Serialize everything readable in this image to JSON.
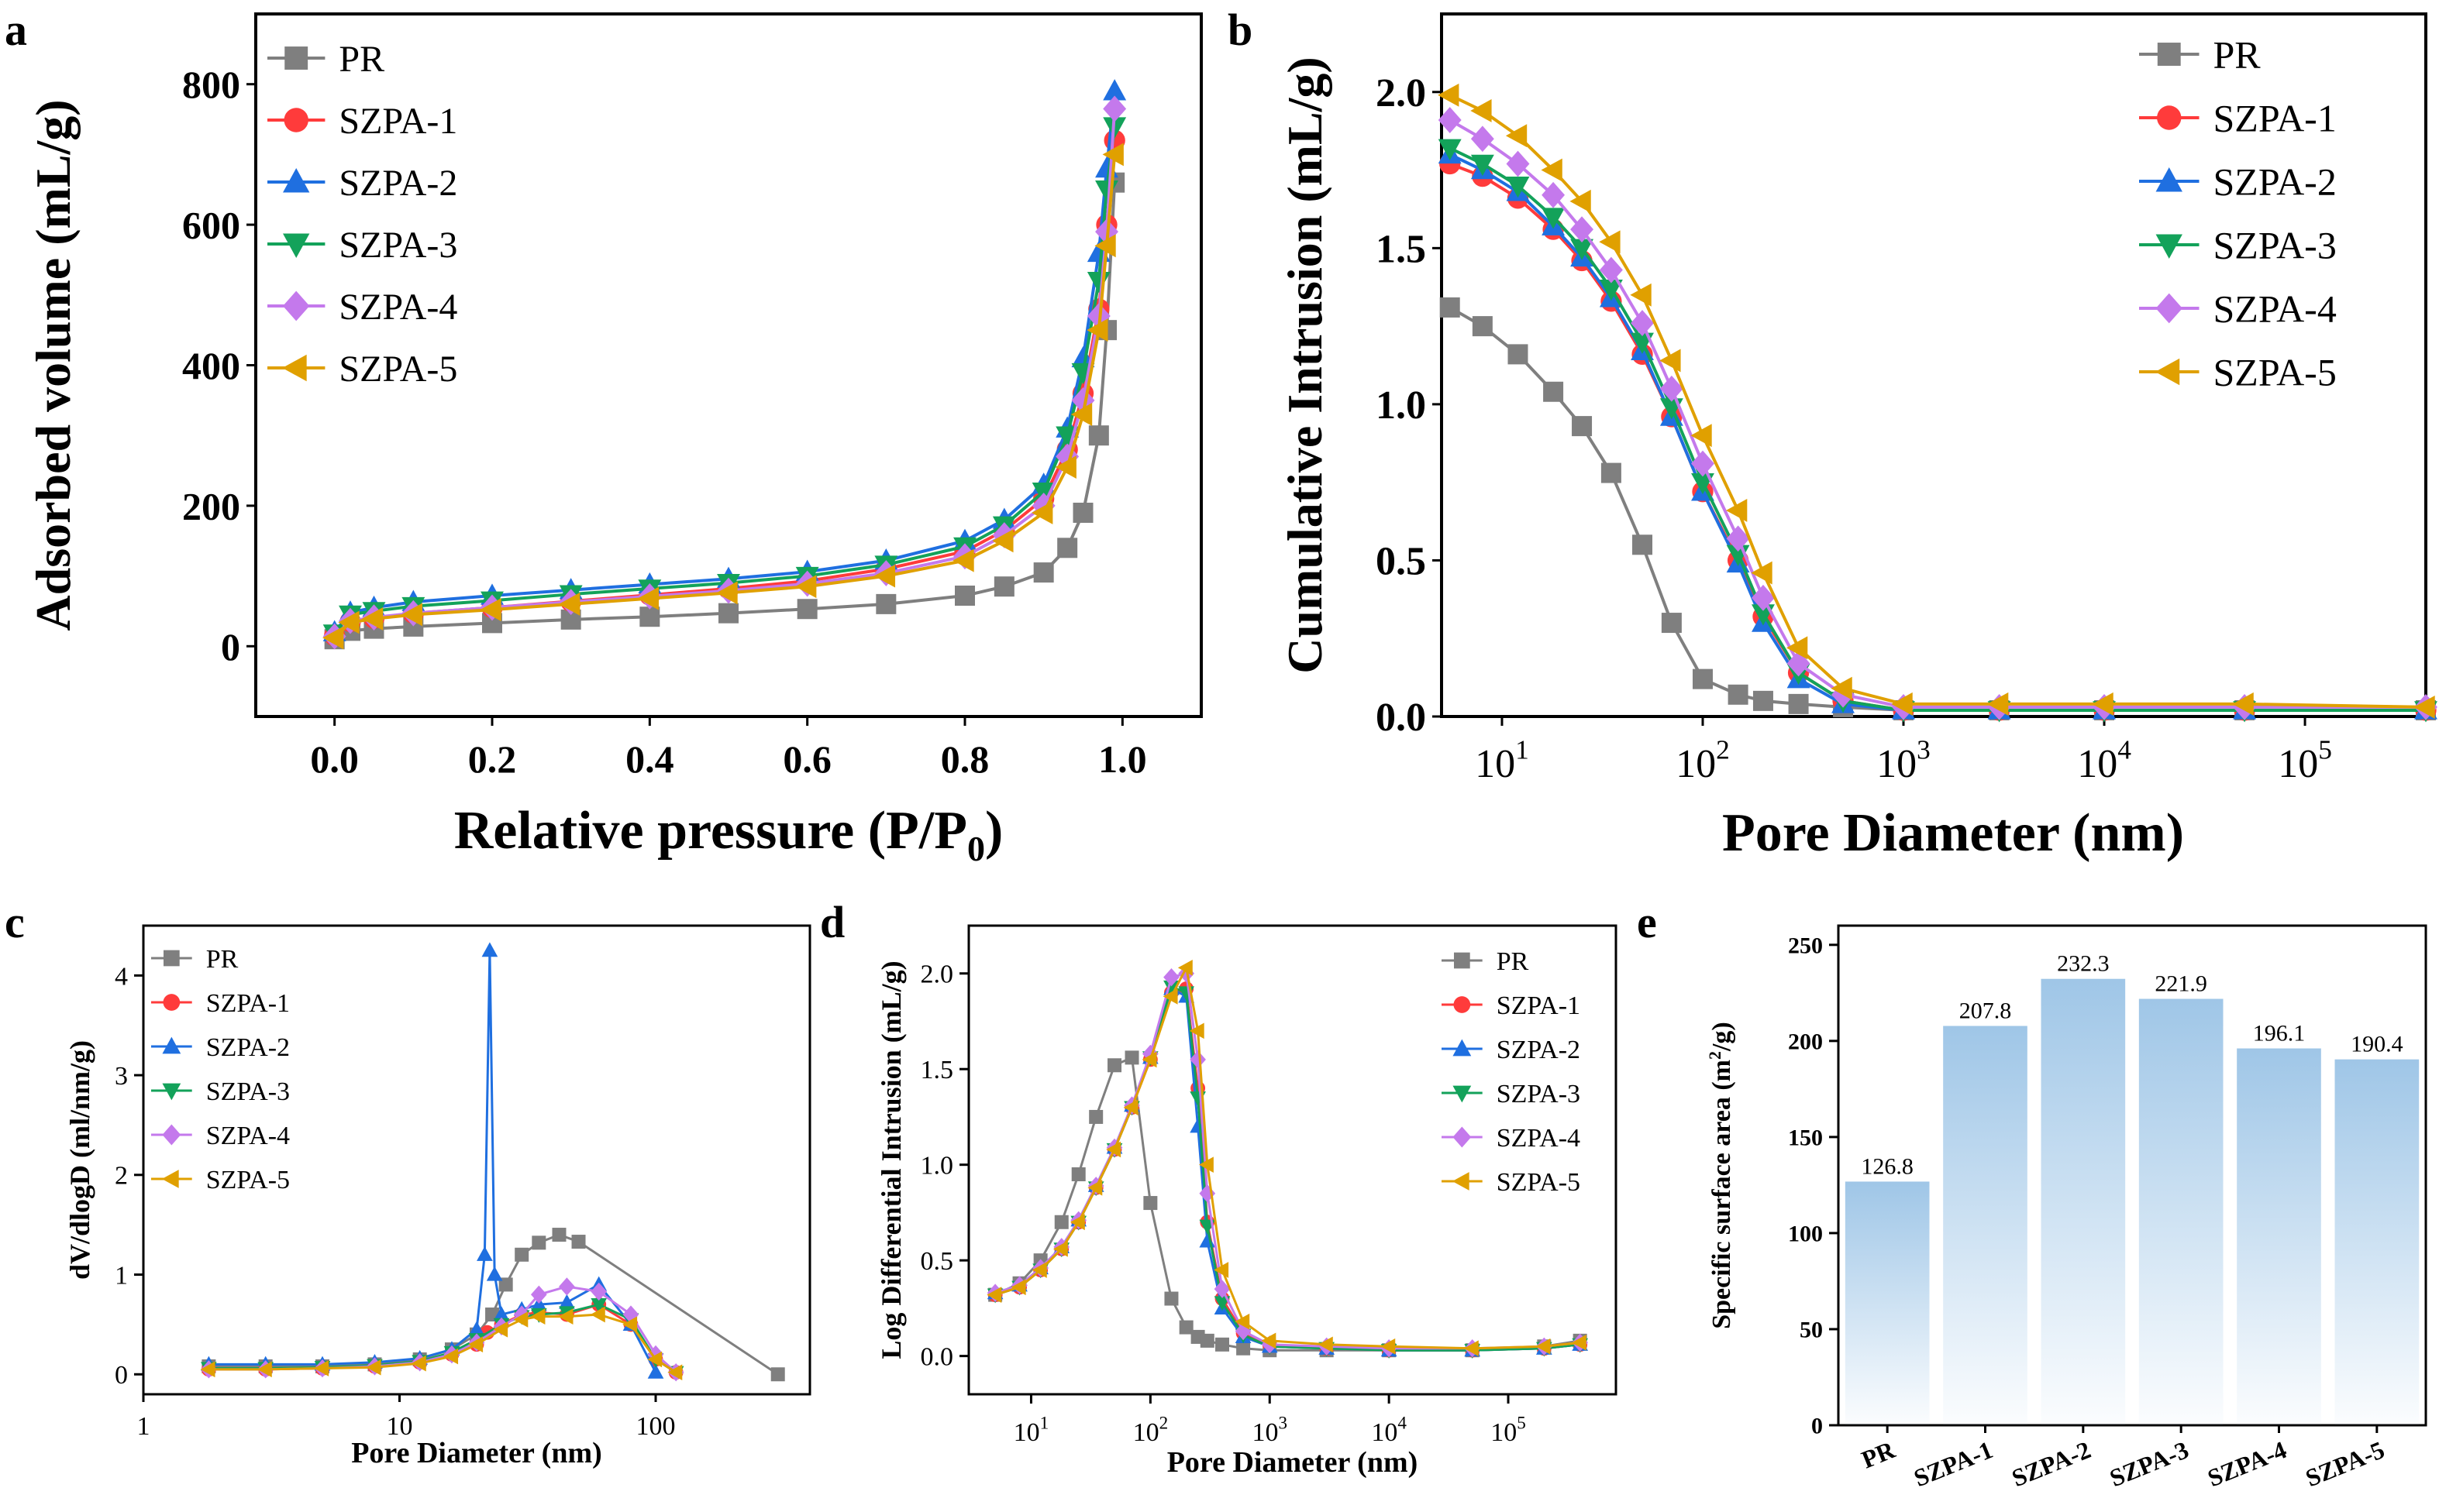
{
  "figure": {
    "series_names": [
      "PR",
      "SZPA-1",
      "SZPA-2",
      "SZPA-3",
      "SZPA-4",
      "SZPA-5"
    ],
    "colors": {
      "PR": "#7f7f7f",
      "SZPA-1": "#ff3b3b",
      "SZPA-2": "#1f6fe0",
      "SZPA-3": "#13a25a",
      "SZPA-4": "#c479ec",
      "SZPA-5": "#e0a000",
      "bar": "#9fc6e7"
    },
    "markers": {
      "PR": "square",
      "SZPA-1": "circle",
      "SZPA-2": "triangle-up",
      "SZPA-3": "triangle-down",
      "SZPA-4": "diamond",
      "SZPA-5": "triangle-left"
    }
  },
  "chart_data": [
    {
      "panel": "a",
      "type": "line",
      "title": "",
      "xlabel": "Relative pressure (P/P",
      "xlabel_sub": "0",
      "xlabel_end": ")",
      "ylabel": "Adsorbed volume (mL/g)",
      "xlim": [
        -0.1,
        1.1
      ],
      "ylim": [
        -100,
        900
      ],
      "xticks": [
        0.0,
        0.2,
        0.4,
        0.6,
        0.8,
        1.0
      ],
      "xtick_labels": [
        "0.0",
        "0.2",
        "0.4",
        "0.6",
        "0.8",
        "1.0"
      ],
      "yticks": [
        0,
        200,
        400,
        600,
        800
      ],
      "ytick_labels": [
        "0",
        "200",
        "400",
        "600",
        "800"
      ],
      "legend": "top-left",
      "x": [
        0.0,
        0.02,
        0.05,
        0.1,
        0.2,
        0.3,
        0.4,
        0.5,
        0.6,
        0.7,
        0.8,
        0.85,
        0.9,
        0.93,
        0.95,
        0.97,
        0.98,
        0.99
      ],
      "series": [
        {
          "name": "PR",
          "values": [
            10,
            22,
            25,
            28,
            33,
            38,
            42,
            47,
            53,
            60,
            72,
            85,
            105,
            140,
            190,
            300,
            450,
            660
          ]
        },
        {
          "name": "SZPA-1",
          "values": [
            15,
            35,
            40,
            47,
            55,
            64,
            73,
            82,
            93,
            110,
            135,
            165,
            210,
            280,
            360,
            480,
            600,
            720
          ]
        },
        {
          "name": "SZPA-2",
          "values": [
            20,
            48,
            55,
            63,
            72,
            80,
            88,
            96,
            106,
            122,
            150,
            180,
            230,
            310,
            410,
            560,
            680,
            790
          ]
        },
        {
          "name": "SZPA-3",
          "values": [
            18,
            45,
            50,
            57,
            65,
            74,
            82,
            90,
            100,
            116,
            142,
            172,
            220,
            300,
            390,
            520,
            650,
            740
          ]
        },
        {
          "name": "SZPA-4",
          "values": [
            14,
            36,
            41,
            47,
            55,
            63,
            71,
            79,
            89,
            104,
            128,
            158,
            200,
            270,
            350,
            470,
            590,
            765
          ]
        },
        {
          "name": "SZPA-5",
          "values": [
            12,
            34,
            39,
            45,
            52,
            60,
            68,
            76,
            85,
            100,
            122,
            150,
            190,
            255,
            330,
            450,
            570,
            700
          ]
        }
      ]
    },
    {
      "panel": "b",
      "type": "line",
      "title": "",
      "xscale": "log",
      "xlabel": "Pore Diameter (nm)",
      "ylabel": "Cumulative Intrusion (mL/g)",
      "xlim": [
        5,
        400000
      ],
      "ylim": [
        0,
        2.25
      ],
      "xticks": [
        10,
        100,
        1000,
        10000,
        100000
      ],
      "xtick_base": "10",
      "xtick_exps": [
        "1",
        "2",
        "3",
        "4",
        "5"
      ],
      "yticks": [
        0,
        0.5,
        1.0,
        1.5,
        2.0
      ],
      "ytick_labels": [
        "0.0",
        "0.5",
        "1.0",
        "1.5",
        "2.0"
      ],
      "legend": "top-right",
      "x": [
        5.5,
        8,
        12,
        18,
        25,
        35,
        50,
        70,
        100,
        150,
        200,
        300,
        500,
        1000,
        3000,
        10000,
        50000,
        400000
      ],
      "series": [
        {
          "name": "PR",
          "values": [
            1.31,
            1.25,
            1.16,
            1.04,
            0.93,
            0.78,
            0.55,
            0.3,
            0.12,
            0.07,
            0.05,
            0.04,
            0.03,
            0.02,
            0.02,
            0.02,
            0.02,
            0.02
          ]
        },
        {
          "name": "SZPA-1",
          "values": [
            1.77,
            1.73,
            1.66,
            1.56,
            1.46,
            1.33,
            1.16,
            0.96,
            0.72,
            0.5,
            0.32,
            0.14,
            0.05,
            0.02,
            0.02,
            0.02,
            0.02,
            0.02
          ]
        },
        {
          "name": "SZPA-2",
          "values": [
            1.8,
            1.75,
            1.68,
            1.57,
            1.47,
            1.34,
            1.17,
            0.96,
            0.72,
            0.49,
            0.3,
            0.12,
            0.04,
            0.02,
            0.02,
            0.02,
            0.02,
            0.02
          ]
        },
        {
          "name": "SZPA-3",
          "values": [
            1.82,
            1.77,
            1.7,
            1.6,
            1.5,
            1.37,
            1.2,
            0.99,
            0.75,
            0.52,
            0.33,
            0.14,
            0.05,
            0.02,
            0.02,
            0.02,
            0.02,
            0.02
          ]
        },
        {
          "name": "SZPA-4",
          "values": [
            1.91,
            1.85,
            1.77,
            1.67,
            1.56,
            1.43,
            1.26,
            1.05,
            0.81,
            0.57,
            0.38,
            0.17,
            0.07,
            0.03,
            0.03,
            0.03,
            0.03,
            0.03
          ]
        },
        {
          "name": "SZPA-5",
          "values": [
            1.99,
            1.94,
            1.86,
            1.75,
            1.65,
            1.52,
            1.35,
            1.14,
            0.9,
            0.66,
            0.46,
            0.22,
            0.09,
            0.04,
            0.04,
            0.04,
            0.04,
            0.03
          ]
        }
      ]
    },
    {
      "panel": "c",
      "type": "line",
      "title": "",
      "xscale": "log",
      "xlabel": "Pore Diameter (nm)",
      "ylabel": "dV/dlogD (ml/nm/g)",
      "xlim": [
        1,
        400
      ],
      "ylim": [
        -0.2,
        4.5
      ],
      "xticks": [
        1,
        10,
        100
      ],
      "xtick_labels": [
        "1",
        "10",
        "100"
      ],
      "yticks": [
        0,
        1,
        2,
        3,
        4
      ],
      "ytick_labels": [
        "0",
        "1",
        "2",
        "3",
        "4"
      ],
      "legend": "top-left",
      "series": [
        {
          "name": "PR",
          "x": [
            1.8,
            3,
            5,
            8,
            12,
            16,
            20,
            23,
            26,
            30,
            35,
            42,
            50,
            300
          ],
          "values": [
            0.08,
            0.08,
            0.08,
            0.1,
            0.15,
            0.25,
            0.4,
            0.6,
            0.9,
            1.2,
            1.32,
            1.4,
            1.33,
            0.0
          ]
        },
        {
          "name": "SZPA-1",
          "x": [
            1.8,
            3,
            5,
            8,
            12,
            16,
            20,
            22,
            25,
            30,
            35,
            45,
            60,
            80,
            100,
            120
          ],
          "values": [
            0.05,
            0.05,
            0.06,
            0.08,
            0.12,
            0.2,
            0.3,
            0.42,
            0.5,
            0.6,
            0.62,
            0.6,
            0.7,
            0.5,
            0.15,
            0.02
          ]
        },
        {
          "name": "SZPA-2",
          "x": [
            1.8,
            3,
            5,
            8,
            12,
            16,
            20,
            21.5,
            22.5,
            23.5,
            25,
            30,
            35,
            45,
            60,
            80,
            100
          ],
          "values": [
            0.1,
            0.1,
            0.1,
            0.12,
            0.16,
            0.25,
            0.45,
            1.2,
            4.25,
            1.0,
            0.6,
            0.65,
            0.7,
            0.72,
            0.9,
            0.5,
            0.02
          ]
        },
        {
          "name": "SZPA-3",
          "x": [
            1.8,
            3,
            5,
            8,
            12,
            16,
            20,
            25,
            30,
            35,
            45,
            60,
            80,
            100,
            120
          ],
          "values": [
            0.06,
            0.06,
            0.07,
            0.09,
            0.13,
            0.22,
            0.35,
            0.5,
            0.58,
            0.6,
            0.62,
            0.7,
            0.55,
            0.15,
            0.02
          ]
        },
        {
          "name": "SZPA-4",
          "x": [
            1.8,
            3,
            5,
            8,
            12,
            16,
            20,
            25,
            30,
            35,
            45,
            60,
            80,
            100,
            120
          ],
          "values": [
            0.05,
            0.05,
            0.06,
            0.08,
            0.12,
            0.2,
            0.32,
            0.48,
            0.6,
            0.8,
            0.88,
            0.83,
            0.6,
            0.2,
            0.02
          ]
        },
        {
          "name": "SZPA-5",
          "x": [
            1.8,
            3,
            5,
            8,
            12,
            16,
            20,
            25,
            30,
            35,
            45,
            60,
            80,
            100,
            120
          ],
          "values": [
            0.05,
            0.05,
            0.06,
            0.07,
            0.11,
            0.18,
            0.3,
            0.45,
            0.55,
            0.58,
            0.58,
            0.6,
            0.5,
            0.15,
            0.02
          ]
        }
      ]
    },
    {
      "panel": "d",
      "type": "line",
      "title": "",
      "xscale": "log",
      "xlabel": "Pore Diameter (nm)",
      "ylabel": "Log Differential Intrusion (mL/g)",
      "xlim": [
        3,
        800000
      ],
      "ylim": [
        -0.2,
        2.25
      ],
      "xticks": [
        10,
        100,
        1000,
        10000,
        100000
      ],
      "xtick_base": "10",
      "xtick_exps": [
        "1",
        "2",
        "3",
        "4",
        "5"
      ],
      "yticks": [
        0,
        0.5,
        1.0,
        1.5,
        2.0
      ],
      "ytick_labels": [
        "0.0",
        "0.5",
        "1.0",
        "1.5",
        "2.0"
      ],
      "legend": "top-right",
      "x": [
        5,
        8,
        12,
        18,
        25,
        35,
        50,
        70,
        100,
        150,
        200,
        250,
        300,
        400,
        600,
        1000,
        3000,
        10000,
        50000,
        200000,
        400000
      ],
      "series": [
        {
          "name": "PR",
          "values": [
            0.32,
            0.38,
            0.5,
            0.7,
            0.95,
            1.25,
            1.52,
            1.56,
            0.8,
            0.3,
            0.15,
            0.1,
            0.08,
            0.06,
            0.04,
            0.03,
            0.03,
            0.03,
            0.03,
            0.05,
            0.08
          ]
        },
        {
          "name": "SZPA-1",
          "values": [
            0.32,
            0.36,
            0.45,
            0.56,
            0.7,
            0.88,
            1.08,
            1.3,
            1.55,
            1.9,
            1.92,
            1.4,
            0.7,
            0.3,
            0.12,
            0.06,
            0.04,
            0.03,
            0.03,
            0.04,
            0.06
          ]
        },
        {
          "name": "SZPA-2",
          "values": [
            0.33,
            0.37,
            0.46,
            0.57,
            0.71,
            0.89,
            1.09,
            1.31,
            1.56,
            1.92,
            1.88,
            1.2,
            0.6,
            0.25,
            0.1,
            0.05,
            0.04,
            0.03,
            0.03,
            0.04,
            0.06
          ]
        },
        {
          "name": "SZPA-3",
          "values": [
            0.32,
            0.36,
            0.45,
            0.56,
            0.7,
            0.88,
            1.08,
            1.3,
            1.56,
            1.93,
            1.9,
            1.35,
            0.68,
            0.28,
            0.11,
            0.05,
            0.04,
            0.03,
            0.03,
            0.04,
            0.06
          ]
        },
        {
          "name": "SZPA-4",
          "values": [
            0.33,
            0.37,
            0.46,
            0.57,
            0.71,
            0.89,
            1.09,
            1.31,
            1.58,
            1.98,
            2.0,
            1.55,
            0.85,
            0.35,
            0.13,
            0.06,
            0.05,
            0.04,
            0.04,
            0.05,
            0.07
          ]
        },
        {
          "name": "SZPA-5",
          "values": [
            0.32,
            0.36,
            0.45,
            0.56,
            0.7,
            0.88,
            1.08,
            1.3,
            1.55,
            1.88,
            2.03,
            1.7,
            1.0,
            0.45,
            0.18,
            0.08,
            0.06,
            0.05,
            0.04,
            0.05,
            0.07
          ]
        }
      ]
    },
    {
      "panel": "e",
      "type": "bar",
      "title": "",
      "xlabel": "",
      "ylabel": "Specific surface area (m",
      "ylabel_sup": "2",
      "ylabel_end": "/g)",
      "ylim": [
        0,
        260
      ],
      "yticks": [
        0,
        50,
        100,
        150,
        200,
        250
      ],
      "ytick_labels": [
        "0",
        "50",
        "100",
        "150",
        "200",
        "250"
      ],
      "categories": [
        "PR",
        "SZPA-1",
        "SZPA-2",
        "SZPA-3",
        "SZPA-4",
        "SZPA-5"
      ],
      "values": [
        126.8,
        207.8,
        232.3,
        221.9,
        196.1,
        190.4
      ],
      "value_labels": [
        "126.8",
        "207.8",
        "232.3",
        "221.9",
        "196.1",
        "190.4"
      ]
    }
  ],
  "panel_letters": [
    "a",
    "b",
    "c",
    "d",
    "e"
  ]
}
